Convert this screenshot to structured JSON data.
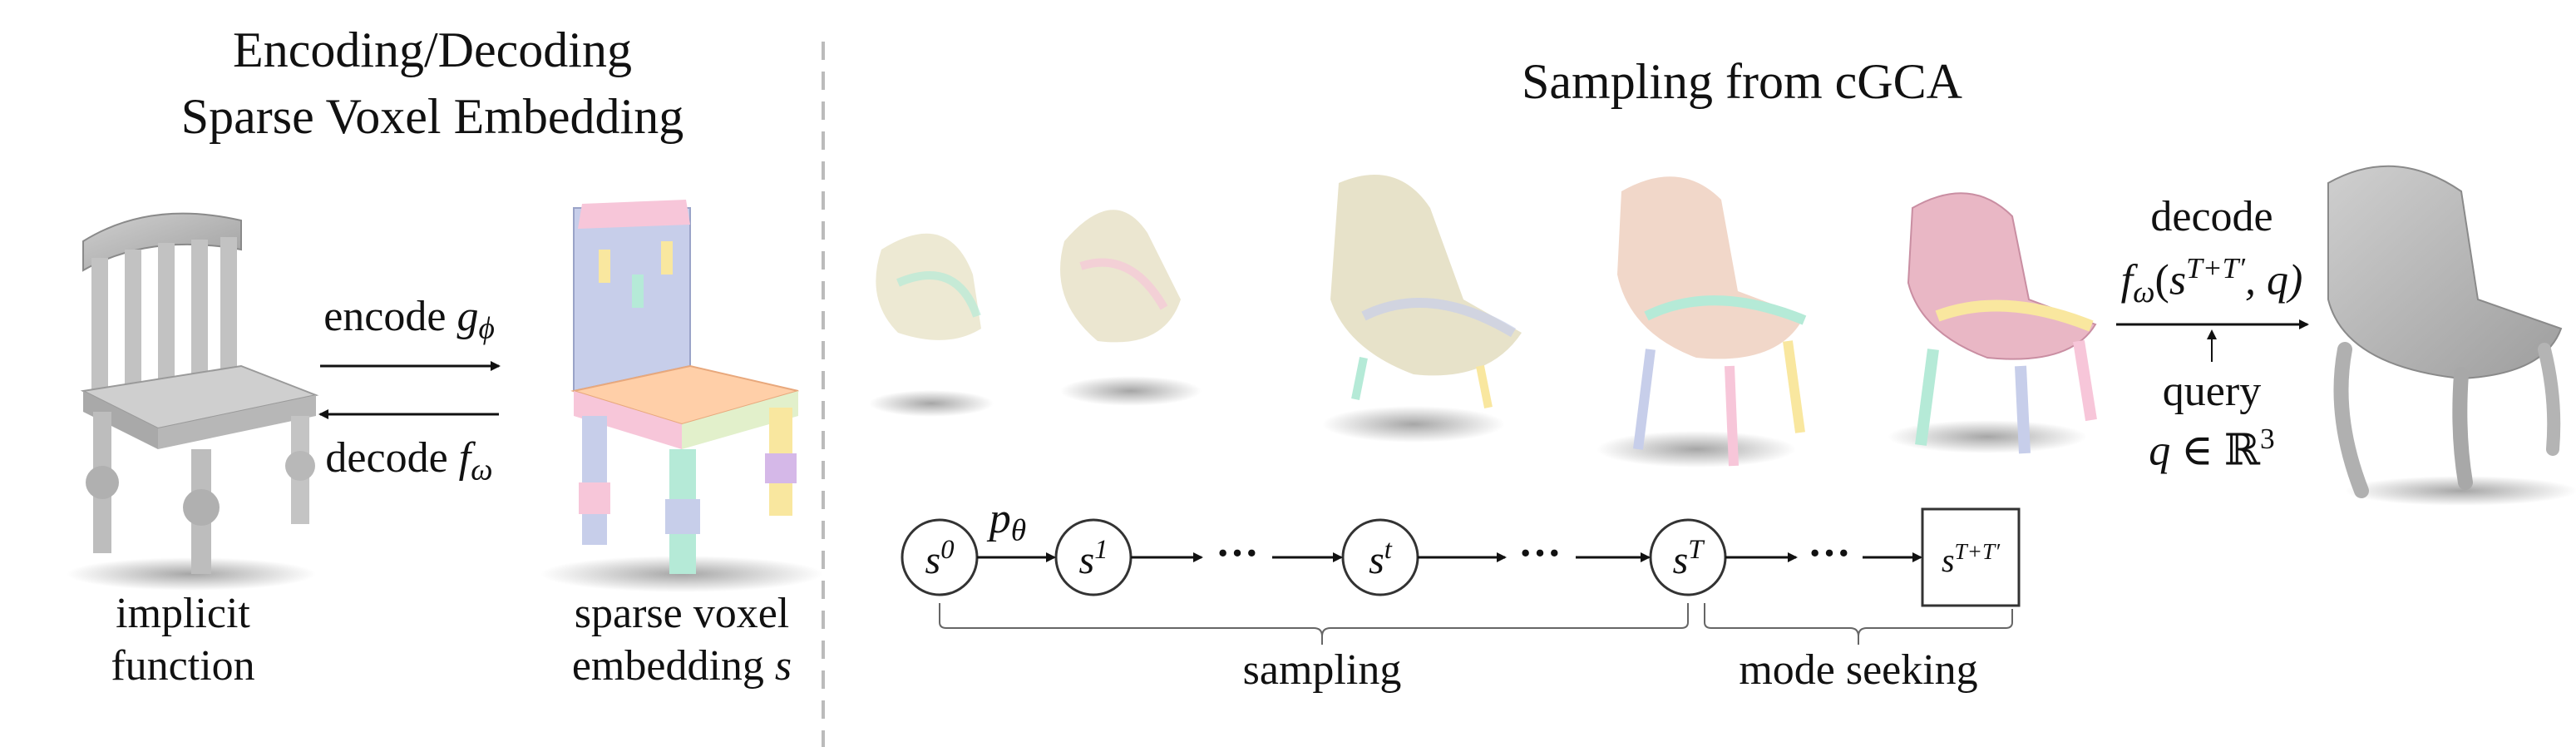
{
  "left_panel": {
    "title_line1": "Encoding/Decoding",
    "title_line2": "Sparse Voxel Embedding",
    "encode_label": "encode",
    "encode_fn": "g",
    "encode_fn_sub": "ϕ",
    "decode_label": "decode",
    "decode_fn": "f",
    "decode_fn_sub": "ω",
    "implicit_line1": "implicit",
    "implicit_line2": "function",
    "sparse_line1": "sparse voxel",
    "sparse_line2": "embedding",
    "sparse_var": "s"
  },
  "right_panel": {
    "title": "Sampling from cGCA",
    "transition": "p",
    "transition_sub": "θ",
    "states": [
      {
        "base": "s",
        "sup": "0"
      },
      {
        "base": "s",
        "sup": "1"
      },
      {
        "base": "s",
        "sup": "t"
      },
      {
        "base": "s",
        "sup": "T"
      },
      {
        "base": "s",
        "sup": "T+T′"
      }
    ],
    "dots": "···",
    "sampling_label": "sampling",
    "mode_seeking_label": "mode seeking",
    "decode_label": "decode",
    "decode_expr_fn": "f",
    "decode_expr_sub": "ω",
    "decode_expr_open": "(",
    "decode_expr_s": "s",
    "decode_expr_sup": "T+T′",
    "decode_expr_rest": ", q)",
    "query_label": "query",
    "query_expr_q": "q",
    "query_expr_in": " ∈ ℝ",
    "query_expr_sup": "3"
  },
  "colors": {
    "voxel_palette": [
      "#f7c6d9",
      "#f9e79f",
      "#b5ead7",
      "#c7ceea",
      "#ffdac1",
      "#e2f0cb",
      "#d5b8e8"
    ],
    "implicit_gray": "#bdbdbd",
    "divider": "#bbbbbb"
  }
}
